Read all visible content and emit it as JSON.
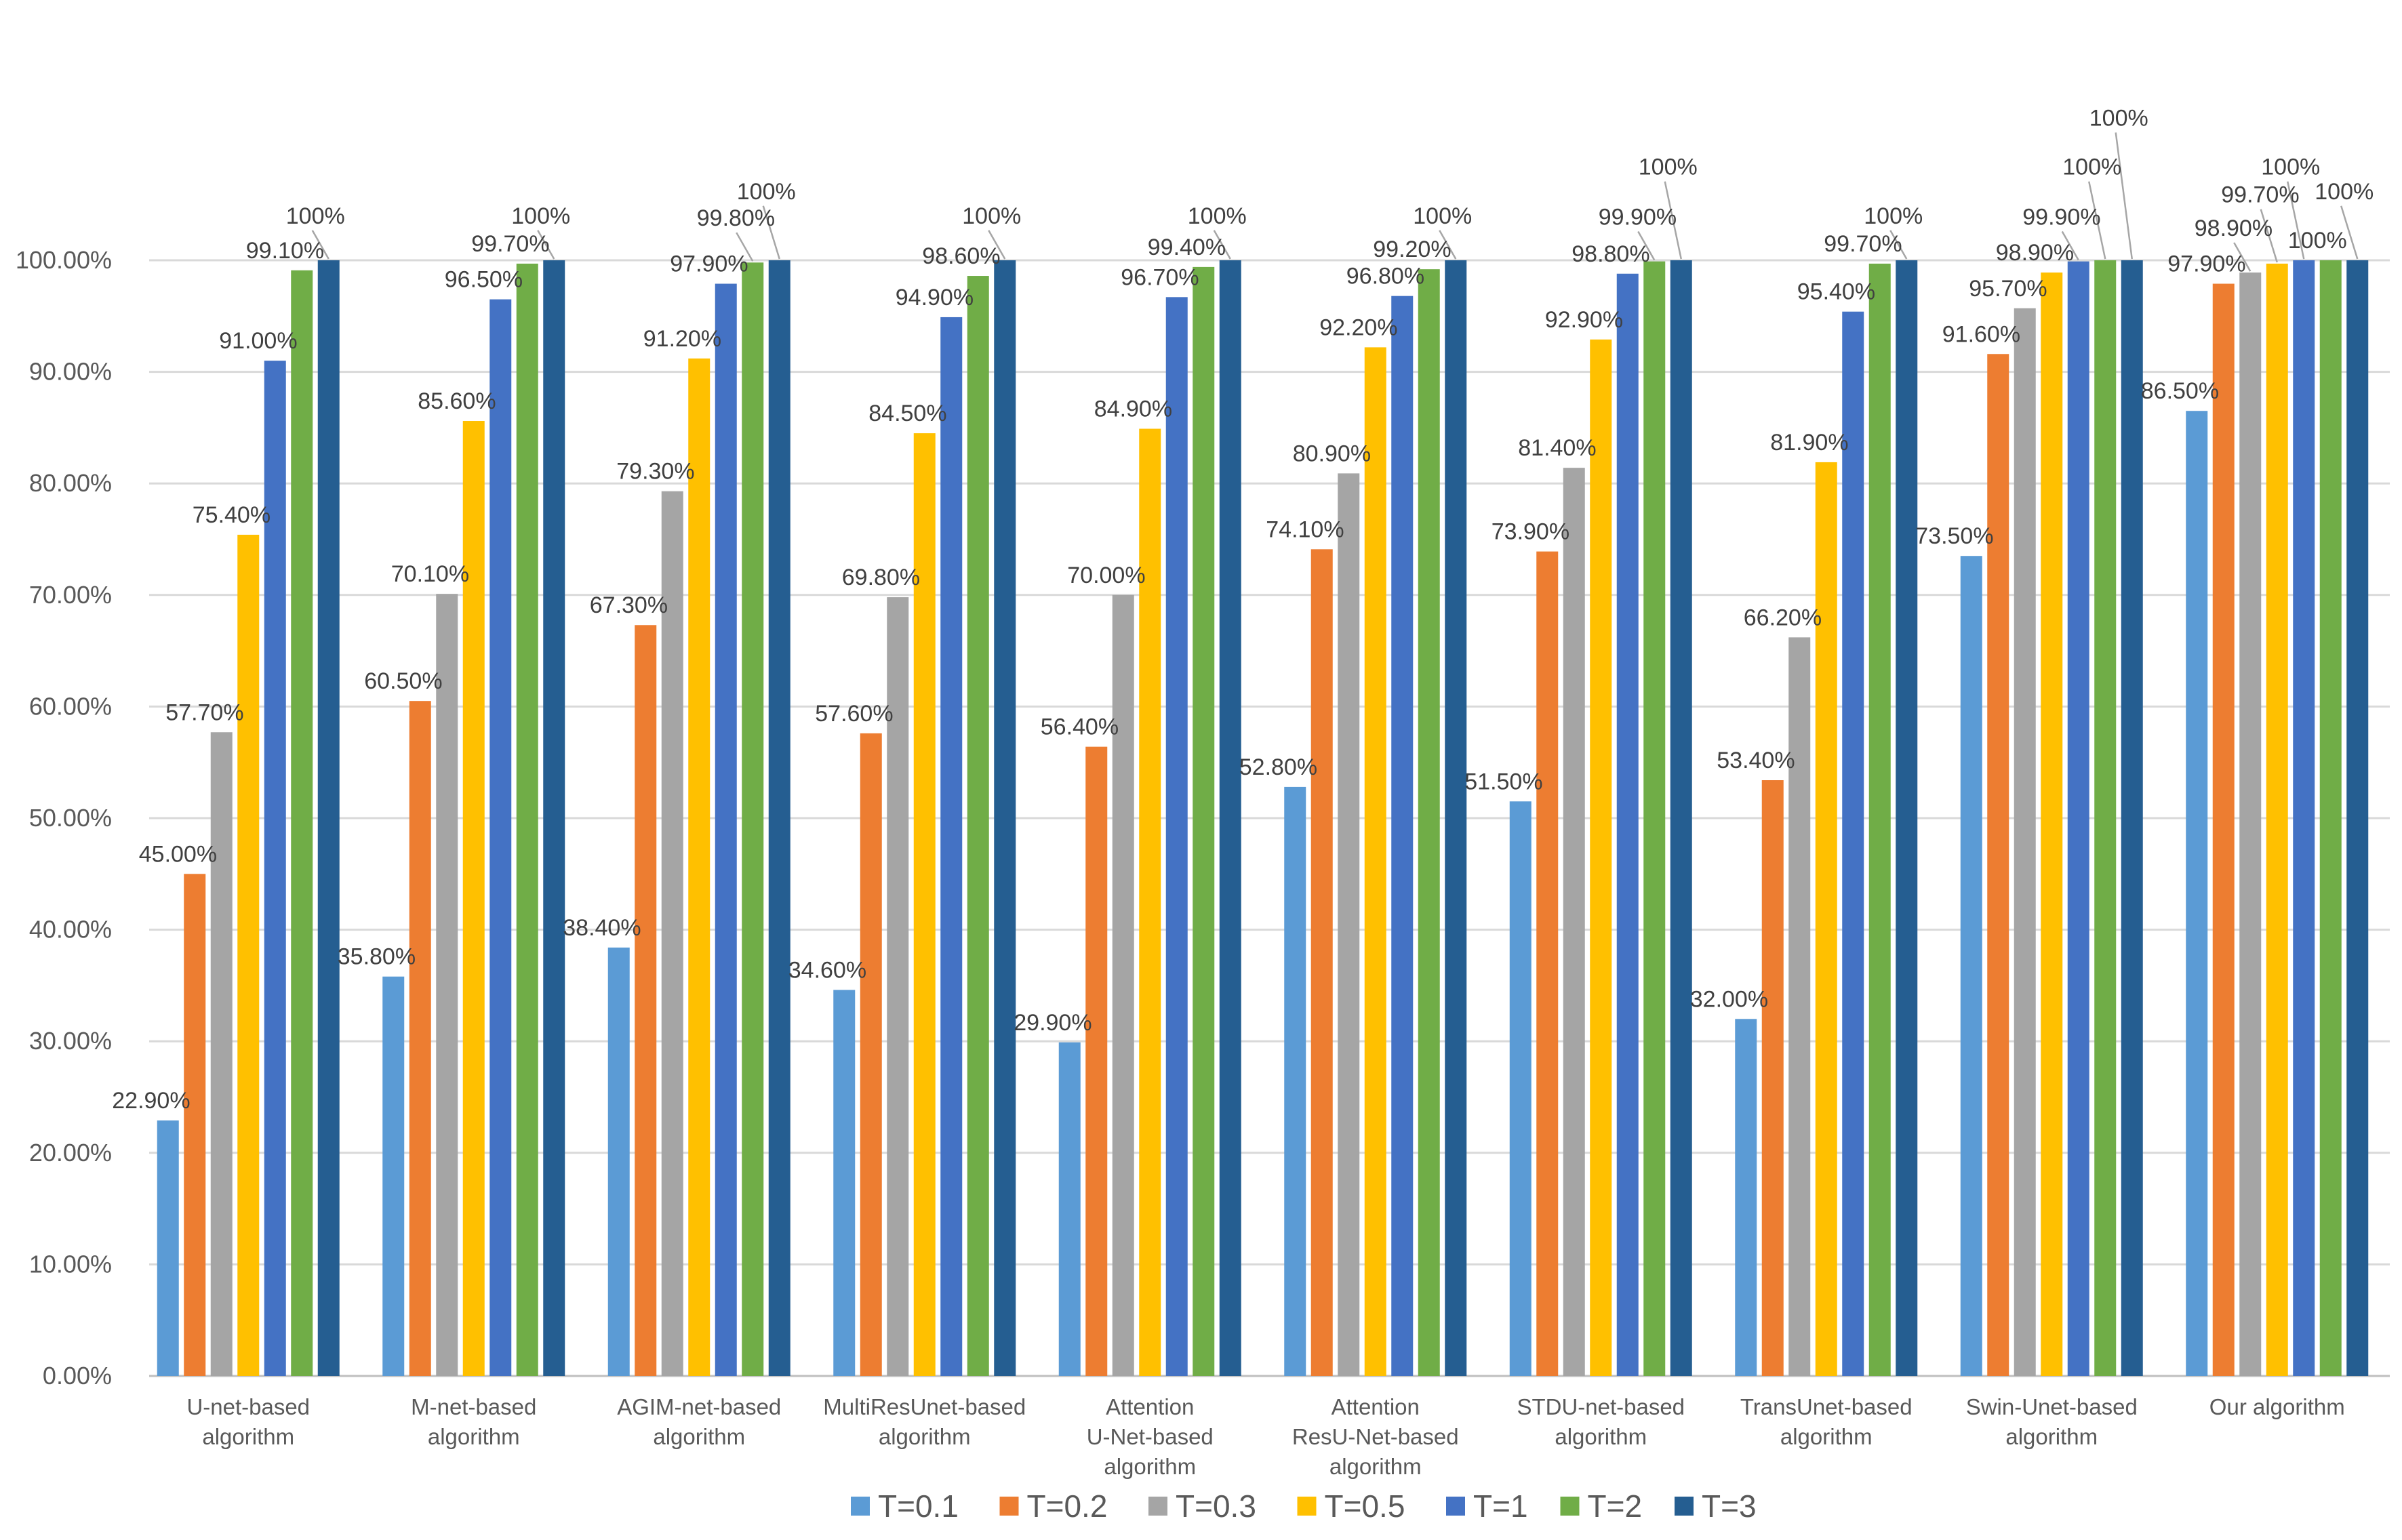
{
  "chart_data": {
    "type": "bar",
    "categories": [
      [
        "U-net-based",
        "algorithm"
      ],
      [
        "M-net-based",
        "algorithm"
      ],
      [
        "AGIM-net-based",
        "algorithm"
      ],
      [
        "MultiResUnet-based",
        "algorithm"
      ],
      [
        "Attention",
        "U-Net-based",
        "algorithm"
      ],
      [
        "Attention",
        "ResU-Net-based",
        "algorithm"
      ],
      [
        "STDU-net-based",
        "algorithm"
      ],
      [
        "TransUnet-based",
        "algorithm"
      ],
      [
        "Swin-Unet-based",
        "algorithm"
      ],
      [
        "Our algorithm"
      ]
    ],
    "series": [
      {
        "name": "T=0.1",
        "color": "#5b9bd5",
        "values": [
          22.9,
          35.8,
          38.4,
          34.6,
          29.9,
          52.8,
          51.5,
          32.0,
          73.5,
          86.5
        ],
        "labels": [
          "22.90%",
          "35.80%",
          "38.40%",
          "34.60%",
          "29.90%",
          "52.80%",
          "51.50%",
          "32.00%",
          "73.50%",
          "86.50%"
        ]
      },
      {
        "name": "T=0.2",
        "color": "#ed7d31",
        "values": [
          45.0,
          60.5,
          67.3,
          57.6,
          56.4,
          74.1,
          73.9,
          53.4,
          91.6,
          97.9
        ],
        "labels": [
          "45.00%",
          "60.50%",
          "67.30%",
          "57.60%",
          "56.40%",
          "74.10%",
          "73.90%",
          "53.40%",
          "91.60%",
          "97.90%"
        ]
      },
      {
        "name": "T=0.3",
        "color": "#a5a5a5",
        "values": [
          57.7,
          70.1,
          79.3,
          69.8,
          70.0,
          80.9,
          81.4,
          66.2,
          95.7,
          98.9
        ],
        "labels": [
          "57.70%",
          "70.10%",
          "79.30%",
          "69.80%",
          "70.00%",
          "80.90%",
          "81.40%",
          "66.20%",
          "95.70%",
          "98.90%"
        ]
      },
      {
        "name": "T=0.5",
        "color": "#ffc000",
        "values": [
          75.4,
          85.6,
          91.2,
          84.5,
          84.9,
          92.2,
          92.9,
          81.9,
          98.9,
          99.7
        ],
        "labels": [
          "75.40%",
          "85.60%",
          "91.20%",
          "84.50%",
          "84.90%",
          "92.20%",
          "92.90%",
          "81.90%",
          "98.90%",
          "99.70%"
        ]
      },
      {
        "name": "T=1",
        "color": "#4472c4",
        "values": [
          91.0,
          96.5,
          97.9,
          94.9,
          96.7,
          96.8,
          98.8,
          95.4,
          99.9,
          100
        ],
        "labels": [
          "91.00%",
          "96.50%",
          "97.90%",
          "94.90%",
          "96.70%",
          "96.80%",
          "98.80%",
          "95.40%",
          "99.90%",
          "100%"
        ]
      },
      {
        "name": "T=2",
        "color": "#70ad47",
        "values": [
          99.1,
          99.7,
          99.8,
          98.6,
          99.4,
          99.2,
          99.9,
          99.7,
          100,
          100
        ],
        "labels": [
          "99.10%",
          "99.70%",
          "99.80%",
          "98.60%",
          "99.40%",
          "99.20%",
          "99.90%",
          "99.70%",
          "100%",
          "100%"
        ]
      },
      {
        "name": "T=3",
        "color": "#255e91",
        "values": [
          100,
          100,
          100,
          100,
          100,
          100,
          100,
          100,
          100,
          100
        ],
        "labels": [
          "100%",
          "100%",
          "100%",
          "100%",
          "100%",
          "100%",
          "100%",
          "100%",
          "100%",
          "100%"
        ]
      }
    ],
    "ylim": [
      0,
      100
    ],
    "yticks": [
      "0.00%",
      "10.00%",
      "20.00%",
      "30.00%",
      "40.00%",
      "50.00%",
      "60.00%",
      "70.00%",
      "80.00%",
      "90.00%",
      "100.00%"
    ],
    "grid": true,
    "legend": "bottom"
  }
}
